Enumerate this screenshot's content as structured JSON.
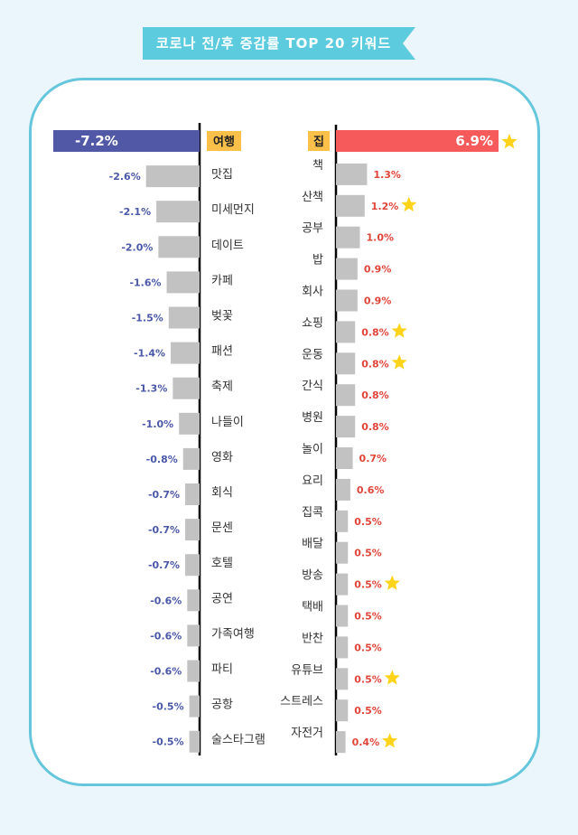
{
  "title": "코로나 전/후 증감률 TOP 20 키워드",
  "colors": {
    "negative_top": "#5158a6",
    "positive_top": "#f65a5a",
    "bar": "#c2c2c2",
    "negative_text": "#4b58a8",
    "positive_text": "#e0453a",
    "keyword_box": "#fbc04a",
    "ribbon": "#5ccbde",
    "star": "#fed31b"
  },
  "chart_data": [
    {
      "type": "bar",
      "orientation": "horizontal",
      "direction": "decrease",
      "categories": [
        "여행",
        "맛집",
        "미세먼지",
        "데이트",
        "카페",
        "벚꽃",
        "패션",
        "축제",
        "나들이",
        "영화",
        "회식",
        "문센",
        "호텔",
        "공연",
        "가족여행",
        "파티",
        "공항",
        "술스타그램"
      ],
      "values": [
        -7.2,
        -2.6,
        -2.1,
        -2.0,
        -1.6,
        -1.5,
        -1.4,
        -1.3,
        -1.0,
        -0.8,
        -0.7,
        -0.7,
        -0.7,
        -0.6,
        -0.6,
        -0.6,
        -0.5,
        -0.5
      ],
      "value_labels": [
        "-7.2%",
        "-2.6%",
        "-2.1%",
        "-2.0%",
        "-1.6%",
        "-1.5%",
        "-1.4%",
        "-1.3%",
        "-1.0%",
        "-0.8%",
        "-0.7%",
        "-0.7%",
        "-0.7%",
        "-0.6%",
        "-0.6%",
        "-0.6%",
        "-0.5%",
        "-0.5%"
      ]
    },
    {
      "type": "bar",
      "orientation": "horizontal",
      "direction": "increase",
      "categories": [
        "집",
        "책",
        "산책",
        "공부",
        "밥",
        "회사",
        "쇼핑",
        "운동",
        "간식",
        "병원",
        "놀이",
        "요리",
        "집콕",
        "배달",
        "방송",
        "택배",
        "반찬",
        "유튜브",
        "스트레스",
        "자전거"
      ],
      "values": [
        6.9,
        1.3,
        1.2,
        1.0,
        0.9,
        0.9,
        0.8,
        0.8,
        0.8,
        0.8,
        0.7,
        0.6,
        0.5,
        0.5,
        0.5,
        0.5,
        0.5,
        0.5,
        0.5,
        0.4
      ],
      "value_labels": [
        "6.9%",
        "1.3%",
        "1.2%",
        "1.0%",
        "0.9%",
        "0.9%",
        "0.8%",
        "0.8%",
        "0.8%",
        "0.8%",
        "0.7%",
        "0.6%",
        "0.5%",
        "0.5%",
        "0.5%",
        "0.5%",
        "0.5%",
        "0.5%",
        "0.5%",
        "0.4%"
      ],
      "starred": [
        "집",
        "산책",
        "쇼핑",
        "운동",
        "방송",
        "유튜브",
        "자전거"
      ]
    }
  ]
}
